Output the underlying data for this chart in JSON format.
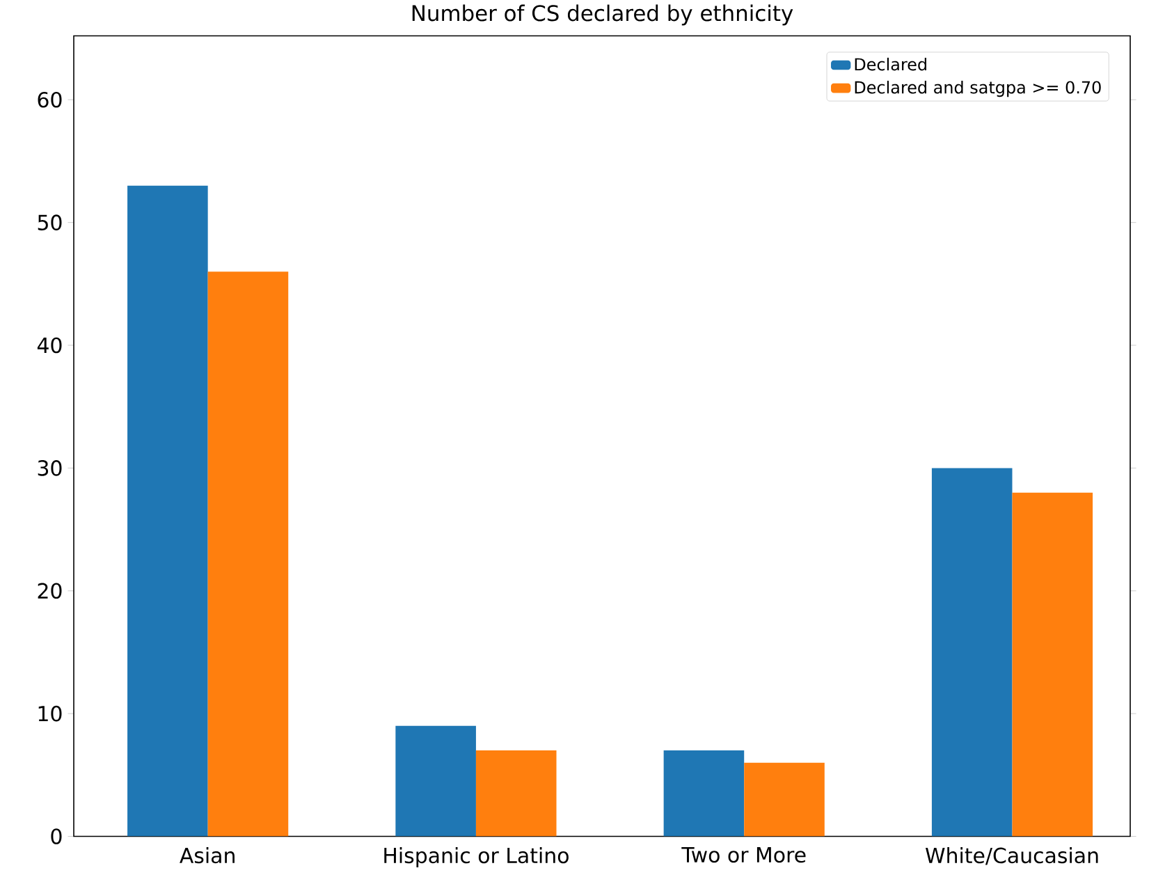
{
  "chart_data": {
    "type": "bar",
    "title": "Number of CS declared by ethnicity",
    "categories": [
      "Asian",
      "Hispanic or Latino",
      "Two or More",
      "White/Caucasian"
    ],
    "series": [
      {
        "name": "Declared",
        "color": "#1f77b4",
        "values": [
          53,
          9,
          7,
          30
        ]
      },
      {
        "name": "Declared and satgpa >= 0.70",
        "color": "#ff7f0e",
        "values": [
          46,
          7,
          6,
          28
        ]
      }
    ],
    "ylim": [
      0,
      65.2
    ],
    "yticks": [
      0,
      10,
      20,
      30,
      40,
      50,
      60
    ],
    "grid": false,
    "legend": "top right"
  }
}
